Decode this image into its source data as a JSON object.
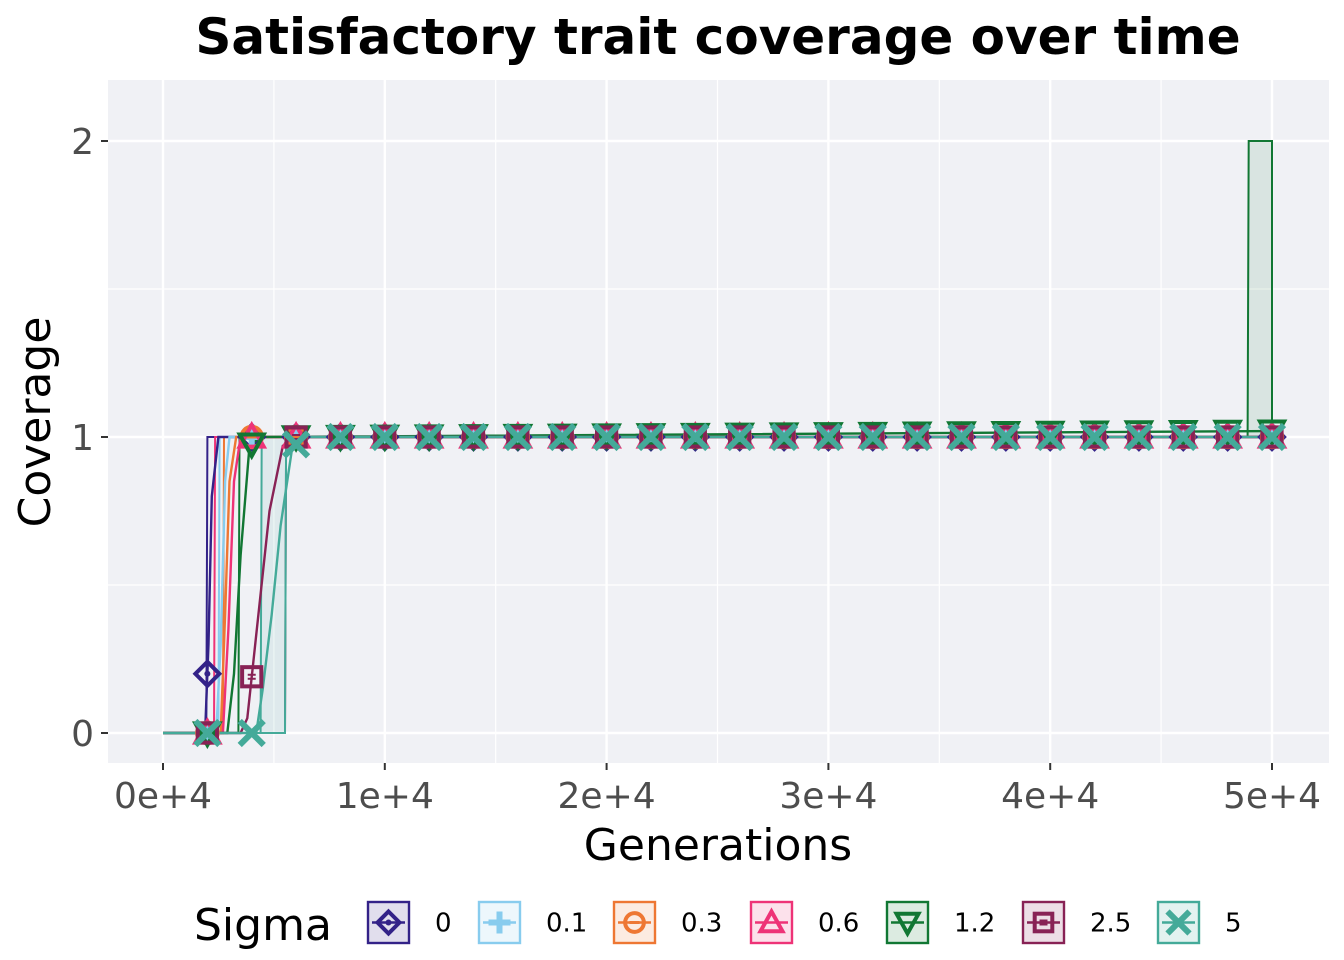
{
  "chart_data": {
    "type": "line",
    "title": "Satisfactory trait coverage over time",
    "xlabel": "Generations",
    "ylabel": "Coverage",
    "xlim": [
      -2500,
      52500
    ],
    "ylim": [
      -0.1,
      2.2
    ],
    "x_ticks": [
      0,
      10000,
      20000,
      30000,
      40000,
      50000
    ],
    "x_tick_labels": [
      "0e+4",
      "1e+4",
      "2e+4",
      "3e+4",
      "4e+4",
      "5e+4"
    ],
    "y_ticks": [
      0,
      1,
      2
    ],
    "y_tick_labels": [
      "0",
      "1",
      "2"
    ],
    "grid": true,
    "legend": {
      "title": "Sigma",
      "position": "bottom"
    },
    "series": [
      {
        "name": "0",
        "color": "#332288",
        "marker": "diamond",
        "x": [
          0,
          1900,
          2050,
          2200,
          2500,
          3000,
          4000,
          50000
        ],
        "y": [
          0,
          0,
          0.3,
          0.8,
          1,
          1,
          1,
          1
        ],
        "band": {
          "x": [
            0,
            1950,
            2000,
            50000
          ],
          "lo": [
            0,
            0,
            1,
            1
          ],
          "hi": [
            0,
            0,
            1,
            1
          ]
        }
      },
      {
        "name": "0.1",
        "color": "#88CCEE",
        "marker": "plus",
        "x": [
          0,
          2400,
          2600,
          2800,
          3000,
          4000,
          50000
        ],
        "y": [
          0,
          0,
          0.3,
          0.85,
          1,
          1,
          1
        ],
        "band": {
          "x": [
            0,
            2500,
            2550,
            50000
          ],
          "lo": [
            0,
            0,
            1,
            1
          ],
          "hi": [
            0,
            0,
            1,
            1
          ]
        }
      },
      {
        "name": "0.3",
        "color": "#EE7733",
        "marker": "circle",
        "x": [
          0,
          2600,
          2800,
          3000,
          3300,
          4000,
          50000
        ],
        "y": [
          0,
          0,
          0.4,
          0.85,
          1,
          1,
          1
        ],
        "band": {
          "x": [
            0,
            2700,
            2750,
            50000
          ],
          "lo": [
            0,
            0,
            1,
            1
          ],
          "hi": [
            0,
            0,
            1,
            1
          ]
        }
      },
      {
        "name": "0.6",
        "color": "#EE3377",
        "marker": "triangle-up",
        "x": [
          0,
          2700,
          2950,
          3200,
          3500,
          4000,
          50000
        ],
        "y": [
          0,
          0,
          0.35,
          0.85,
          1,
          1,
          1
        ],
        "band": {
          "x": [
            0,
            2300,
            2350,
            50000
          ],
          "lo": [
            0,
            0,
            1,
            1
          ],
          "hi": [
            0,
            0,
            1,
            1
          ]
        }
      },
      {
        "name": "1.2",
        "color": "#117733",
        "marker": "triangle-down",
        "x": [
          0,
          2900,
          3200,
          3500,
          3900,
          4400,
          50000
        ],
        "y": [
          0,
          0,
          0.2,
          0.6,
          0.97,
          1,
          1.02
        ],
        "band": {
          "x": [
            0,
            3400,
            3450,
            48900,
            48950,
            50000
          ],
          "lo": [
            0,
            0,
            1,
            1,
            1,
            1
          ],
          "hi": [
            0,
            0,
            1,
            1,
            2,
            2
          ]
        }
      },
      {
        "name": "2.5",
        "color": "#882255",
        "marker": "square",
        "x": [
          0,
          3500,
          3800,
          4300,
          4800,
          5400,
          6000,
          50000
        ],
        "y": [
          0,
          0,
          0.05,
          0.4,
          0.75,
          0.97,
          1,
          1
        ],
        "band": {
          "x": [
            0,
            5500,
            5550,
            50000
          ],
          "lo": [
            0,
            0,
            1,
            1
          ],
          "hi": [
            0,
            0,
            1,
            1
          ]
        }
      },
      {
        "name": "5",
        "color": "#44AA99",
        "marker": "x",
        "x": [
          0,
          4200,
          4500,
          4900,
          5300,
          5800,
          6200,
          50000
        ],
        "y": [
          0,
          0,
          0.15,
          0.4,
          0.7,
          0.95,
          1,
          1
        ],
        "band": {
          "x": [
            0,
            4400,
            4450,
            5500,
            5550,
            50000
          ],
          "lo": [
            0,
            0,
            0,
            0,
            1,
            1
          ],
          "hi": [
            0,
            0,
            1,
            1,
            1,
            1
          ]
        }
      }
    ],
    "marker_x": [
      2000,
      4000,
      6000,
      8000,
      10000,
      12000,
      14000,
      16000,
      18000,
      20000,
      22000,
      24000,
      26000,
      28000,
      30000,
      32000,
      34000,
      36000,
      38000,
      40000,
      42000,
      44000,
      46000,
      48000,
      50000
    ]
  }
}
